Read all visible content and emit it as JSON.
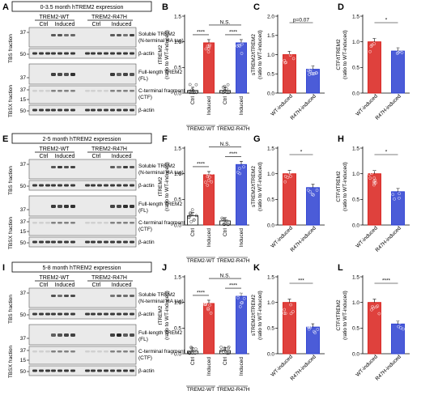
{
  "colors": {
    "wt": "#d9201b",
    "r47h": "#2b3fd1",
    "ctrl": "#222222",
    "axis": "#000000"
  },
  "groups_bar": [
    "Ctrl",
    "Induced",
    "Ctrl",
    "Induced"
  ],
  "groups_ratio": [
    "WT-induced",
    "R47H-induced"
  ],
  "genotypes": [
    "TREM2-WT",
    "TREM2-R47H"
  ],
  "rows": [
    {
      "blot": {
        "letter": "A",
        "title": "0-3.5 month hTREM2 expression",
        "header_wt": "TREM2-WT",
        "header_r47h": "TREM2-R47H",
        "lanes": [
          "Ctrl",
          "Induced",
          "Ctrl",
          "Induced"
        ],
        "fraction_tbs": "TBS fraction",
        "fraction_tbsx": "TBSX fraction",
        "mw": [
          "37",
          "50",
          "37",
          "37",
          "15",
          "50"
        ],
        "bands": [
          "Soluble TREM2",
          "(N-terminal HA tag)",
          "β-actin",
          "Full-length TREM2",
          "(FL)",
          "C-terminal fragment",
          "(CTF)",
          "β-actin"
        ]
      },
      "charts": [
        {
          "letter": "B",
          "type": "bar",
          "ylabel": "tTREM2",
          "ylabel2": "(ratio to WT-induced)",
          "yticks": [
            "0.0",
            "0.5",
            "1.0",
            "1.5"
          ],
          "ylim": [
            0,
            1.5
          ],
          "categories": [
            "Ctrl",
            "Induced",
            "Ctrl",
            "Induced"
          ],
          "values": [
            0.05,
            0.98,
            0.05,
            0.98
          ],
          "sig": [
            "****",
            "****",
            "N.S."
          ]
        },
        {
          "letter": "C",
          "type": "bar",
          "ylabel": "sTREM2/tTREM2",
          "ylabel2": "(ratio to WT-induced)",
          "yticks": [
            "0.0",
            "0.5",
            "1.0",
            "1.5",
            "2.0"
          ],
          "ylim": [
            0,
            2.0
          ],
          "categories": [
            "WT-induced",
            "R47H-induced"
          ],
          "values": [
            1.0,
            0.62
          ],
          "sig": [
            "p=0.07"
          ]
        },
        {
          "letter": "D",
          "type": "bar",
          "ylabel": "CTF/tTREM2",
          "ylabel2": "(ratio to WT-induced)",
          "yticks": [
            "0.0",
            "0.5",
            "1.0",
            "1.5"
          ],
          "ylim": [
            0,
            1.5
          ],
          "categories": [
            "WT-induced",
            "R47H-induced"
          ],
          "values": [
            1.0,
            0.82
          ],
          "sig": [
            "*"
          ]
        }
      ]
    },
    {
      "blot": {
        "letter": "E",
        "title": "2-5 month hTREM2 expression",
        "header_wt": "TREM2-WT",
        "header_r47h": "TREM2-R47H",
        "lanes": [
          "Ctrl",
          "Induced",
          "Ctrl",
          "Induced"
        ],
        "fraction_tbs": "TBS fraction",
        "fraction_tbsx": "TBSX fraction",
        "mw": [
          "37",
          "50",
          "37",
          "37",
          "15",
          "50"
        ],
        "bands": [
          "Soluble TREM2",
          "(N-terminal HA tag)",
          "β-actin",
          "Full-length TREM2",
          "(FL)",
          "C-terminal fragment",
          "(CTF)",
          "β-actin"
        ]
      },
      "charts": [
        {
          "letter": "F",
          "type": "bar",
          "ylabel": "tTREM2",
          "ylabel2": "(ratio to WT-induced)",
          "yticks": [
            "0.0",
            "0.5",
            "1.0",
            "1.5"
          ],
          "ylim": [
            0,
            1.5
          ],
          "categories": [
            "Ctrl",
            "Induced",
            "Ctrl",
            "Induced"
          ],
          "values": [
            0.18,
            0.98,
            0.08,
            1.18
          ],
          "sig": [
            "****",
            "****",
            "N.S."
          ]
        },
        {
          "letter": "G",
          "type": "bar",
          "ylabel": "sTREM2/tTREM2",
          "ylabel2": "(ratio to WT-induced)",
          "yticks": [
            "0.0",
            "0.5",
            "1.0",
            "1.5"
          ],
          "ylim": [
            0,
            1.5
          ],
          "categories": [
            "WT-induced",
            "R47H-induced"
          ],
          "values": [
            1.0,
            0.73
          ],
          "sig": [
            "*"
          ]
        },
        {
          "letter": "H",
          "type": "bar",
          "ylabel": "CTF/tTREM2",
          "ylabel2": "(ratio to WT-induced)",
          "yticks": [
            "0.0",
            "0.5",
            "1.0",
            "1.5"
          ],
          "ylim": [
            0,
            1.5
          ],
          "categories": [
            "WT-induced",
            "R47H-induced"
          ],
          "values": [
            1.0,
            0.65
          ],
          "sig": [
            "*"
          ]
        }
      ]
    },
    {
      "blot": {
        "letter": "I",
        "title": "5-8 month hTREM2 expression",
        "header_wt": "TREM2-WT",
        "header_r47h": "TREM2-R47H",
        "lanes": [
          "Ctrl",
          "Induced",
          "Ctrl",
          "Induced"
        ],
        "fraction_tbs": "TBS fraction",
        "fraction_tbsx": "TBSX fraction",
        "mw": [
          "37",
          "50",
          "37",
          "37",
          "15",
          "50"
        ],
        "bands": [
          "Soluble TREM2",
          "(N-terminal HA tag)",
          "β-actin",
          "Full-length TREM2",
          "(FL)",
          "C-terminal fragment",
          "(CTF)",
          "β-actin"
        ]
      },
      "charts": [
        {
          "letter": "J",
          "type": "bar",
          "ylabel": "tTREM2",
          "ylabel2": "(ratio to WT-induced)",
          "yticks": [
            "0.0",
            "0.5",
            "1.0",
            "1.5"
          ],
          "ylim": [
            0,
            1.5
          ],
          "categories": [
            "Ctrl",
            "Induced",
            "Ctrl",
            "Induced"
          ],
          "values": [
            0.05,
            0.98,
            0.06,
            1.12
          ],
          "sig": [
            "****",
            "****",
            "N.S."
          ]
        },
        {
          "letter": "K",
          "type": "bar",
          "ylabel": "sTREM2/tTREM2",
          "ylabel2": "(ratio to WT-induced)",
          "yticks": [
            "0.0",
            "0.5",
            "1.0",
            "1.5"
          ],
          "ylim": [
            0,
            1.5
          ],
          "categories": [
            "WT-induced",
            "R47H-induced"
          ],
          "values": [
            1.0,
            0.52
          ],
          "sig": [
            "***"
          ]
        },
        {
          "letter": "L",
          "type": "bar",
          "ylabel": "CTF/tTREM2",
          "ylabel2": "(ratio to WT-induced)",
          "yticks": [
            "0.0",
            "0.5",
            "1.0",
            "1.5"
          ],
          "ylim": [
            0,
            1.5
          ],
          "categories": [
            "WT-induced",
            "R47H-induced"
          ],
          "values": [
            1.0,
            0.58
          ],
          "sig": [
            "****"
          ]
        }
      ]
    }
  ],
  "chart_data": [
    {
      "panel": "B",
      "type": "bar",
      "ylabel": "tTREM2 (ratio to WT-induced)",
      "ylim": [
        0,
        1.5
      ],
      "categories": [
        "TREM2-WT Ctrl",
        "TREM2-WT Induced",
        "TREM2-R47H Ctrl",
        "TREM2-R47H Induced"
      ],
      "values": [
        0.05,
        0.98,
        0.05,
        0.98
      ],
      "annotations": [
        "****",
        "****",
        "N.S."
      ]
    },
    {
      "panel": "C",
      "type": "bar",
      "ylabel": "sTREM2/tTREM2 (ratio to WT-induced)",
      "ylim": [
        0,
        2.0
      ],
      "categories": [
        "WT-induced",
        "R47H-induced"
      ],
      "values": [
        1.0,
        0.62
      ],
      "annotations": [
        "p=0.07"
      ]
    },
    {
      "panel": "D",
      "type": "bar",
      "ylabel": "CTF/tTREM2 (ratio to WT-induced)",
      "ylim": [
        0,
        1.5
      ],
      "categories": [
        "WT-induced",
        "R47H-induced"
      ],
      "values": [
        1.0,
        0.82
      ],
      "annotations": [
        "*"
      ]
    },
    {
      "panel": "F",
      "type": "bar",
      "ylabel": "tTREM2 (ratio to WT-induced)",
      "ylim": [
        0,
        1.5
      ],
      "categories": [
        "TREM2-WT Ctrl",
        "TREM2-WT Induced",
        "TREM2-R47H Ctrl",
        "TREM2-R47H Induced"
      ],
      "values": [
        0.18,
        0.98,
        0.08,
        1.18
      ],
      "annotations": [
        "****",
        "****",
        "N.S."
      ]
    },
    {
      "panel": "G",
      "type": "bar",
      "ylabel": "sTREM2/tTREM2 (ratio to WT-induced)",
      "ylim": [
        0,
        1.5
      ],
      "categories": [
        "WT-induced",
        "R47H-induced"
      ],
      "values": [
        1.0,
        0.73
      ],
      "annotations": [
        "*"
      ]
    },
    {
      "panel": "H",
      "type": "bar",
      "ylabel": "CTF/tTREM2 (ratio to WT-induced)",
      "ylim": [
        0,
        1.5
      ],
      "categories": [
        "WT-induced",
        "R47H-induced"
      ],
      "values": [
        1.0,
        0.65
      ],
      "annotations": [
        "*"
      ]
    },
    {
      "panel": "J",
      "type": "bar",
      "ylabel": "tTREM2 (ratio to WT-induced)",
      "ylim": [
        0,
        1.5
      ],
      "categories": [
        "TREM2-WT Ctrl",
        "TREM2-WT Induced",
        "TREM2-R47H Ctrl",
        "TREM2-R47H Induced"
      ],
      "values": [
        0.05,
        0.98,
        0.06,
        1.12
      ],
      "annotations": [
        "****",
        "****",
        "N.S."
      ]
    },
    {
      "panel": "K",
      "type": "bar",
      "ylabel": "sTREM2/tTREM2 (ratio to WT-induced)",
      "ylim": [
        0,
        1.5
      ],
      "categories": [
        "WT-induced",
        "R47H-induced"
      ],
      "values": [
        1.0,
        0.52
      ],
      "annotations": [
        "***"
      ]
    },
    {
      "panel": "L",
      "type": "bar",
      "ylabel": "CTF/tTREM2 (ratio to WT-induced)",
      "ylim": [
        0,
        1.5
      ],
      "categories": [
        "WT-induced",
        "R47H-induced"
      ],
      "values": [
        1.0,
        0.58
      ],
      "annotations": [
        "****"
      ]
    }
  ]
}
